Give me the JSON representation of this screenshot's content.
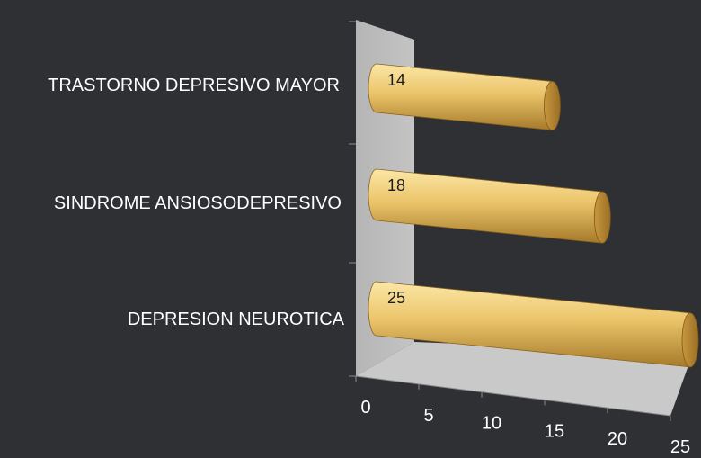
{
  "chart_data": {
    "type": "bar",
    "orientation": "horizontal",
    "style": "3d-cylinder",
    "categories": [
      "TRASTORNO DEPRESIVO MAYOR",
      "SINDROME ANSIOSODEPRESIVO",
      "DEPRESION NEUROTICA"
    ],
    "values": [
      14,
      18,
      25
    ],
    "data_labels": [
      "14",
      "18",
      "25"
    ],
    "x_ticks": [
      "0",
      "5",
      "10",
      "15",
      "20",
      "25"
    ],
    "xlim": [
      0,
      25
    ],
    "title": "",
    "xlabel": "",
    "ylabel": "",
    "legend": "none",
    "colors": {
      "background": "#2e3033",
      "bar_light": "#fbe7a6",
      "bar_mid": "#ebc46a",
      "bar_dark": "#a57a2a",
      "wall": "#b9b9b9",
      "floor": "#c9c9c9",
      "text": "#ffffff",
      "data_label_text": "#1a1a1a"
    }
  }
}
